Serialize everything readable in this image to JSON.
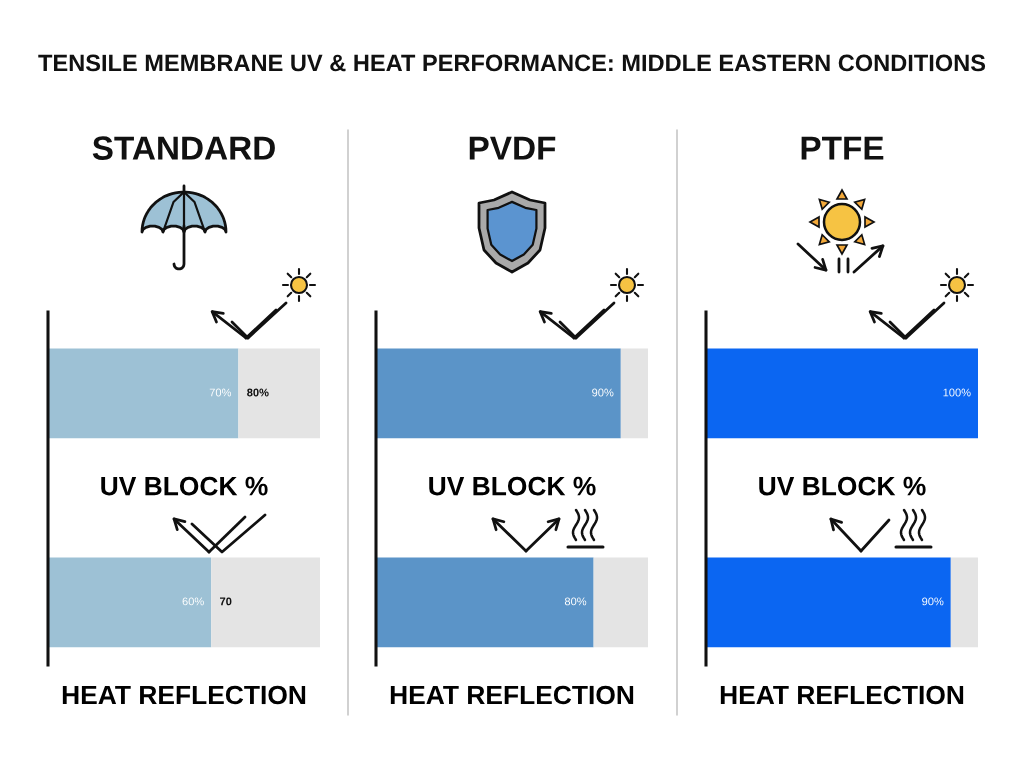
{
  "chart_data": [
    {
      "type": "bar",
      "title": "TENSILE MEMBRANE UV & HEAT PERFORMANCE: MIDDLE EASTERN CONDITIONS",
      "subtitle": "STANDARD",
      "orientation": "horizontal",
      "stacked": true,
      "categories": [
        "UV BLOCK %",
        "HEAT REFLECTION"
      ],
      "series": [
        {
          "color": "#9dc1d5",
          "values": [
            70,
            60
          ],
          "value_labels": [
            "70%",
            "60%"
          ]
        },
        {
          "color": "#e4e4e4",
          "values": [
            30,
            40
          ]
        }
      ],
      "xlim": [
        0,
        100
      ],
      "tick_labels": "y",
      "annotations": [
        "80%",
        "70"
      ]
    },
    {
      "type": "bar",
      "subtitle": "PVDF",
      "orientation": "horizontal",
      "stacked": true,
      "categories": [
        "UV BLOCK %",
        "HEAT REFLECTION"
      ],
      "series": [
        {
          "color": "#5b94c8",
          "values": [
            90,
            80
          ],
          "value_labels": [
            "90%",
            "80%"
          ]
        },
        {
          "color": "#e4e4e4",
          "values": [
            10,
            20
          ]
        }
      ],
      "xlim": [
        0,
        100
      ],
      "tick_labels": "y"
    },
    {
      "type": "bar",
      "subtitle": "PTFE",
      "orientation": "horizontal",
      "stacked": true,
      "categories": [
        "UV BLOCK %",
        "HEAT REFLECTION"
      ],
      "series": [
        {
          "color": "#0b66f2",
          "values": [
            100,
            90
          ],
          "value_labels": [
            "100%",
            "90%"
          ]
        },
        {
          "color": "#e4e4e4",
          "values": [
            0,
            10
          ]
        }
      ],
      "xlim": [
        0,
        100
      ],
      "tick_labels": "y"
    }
  ]
}
